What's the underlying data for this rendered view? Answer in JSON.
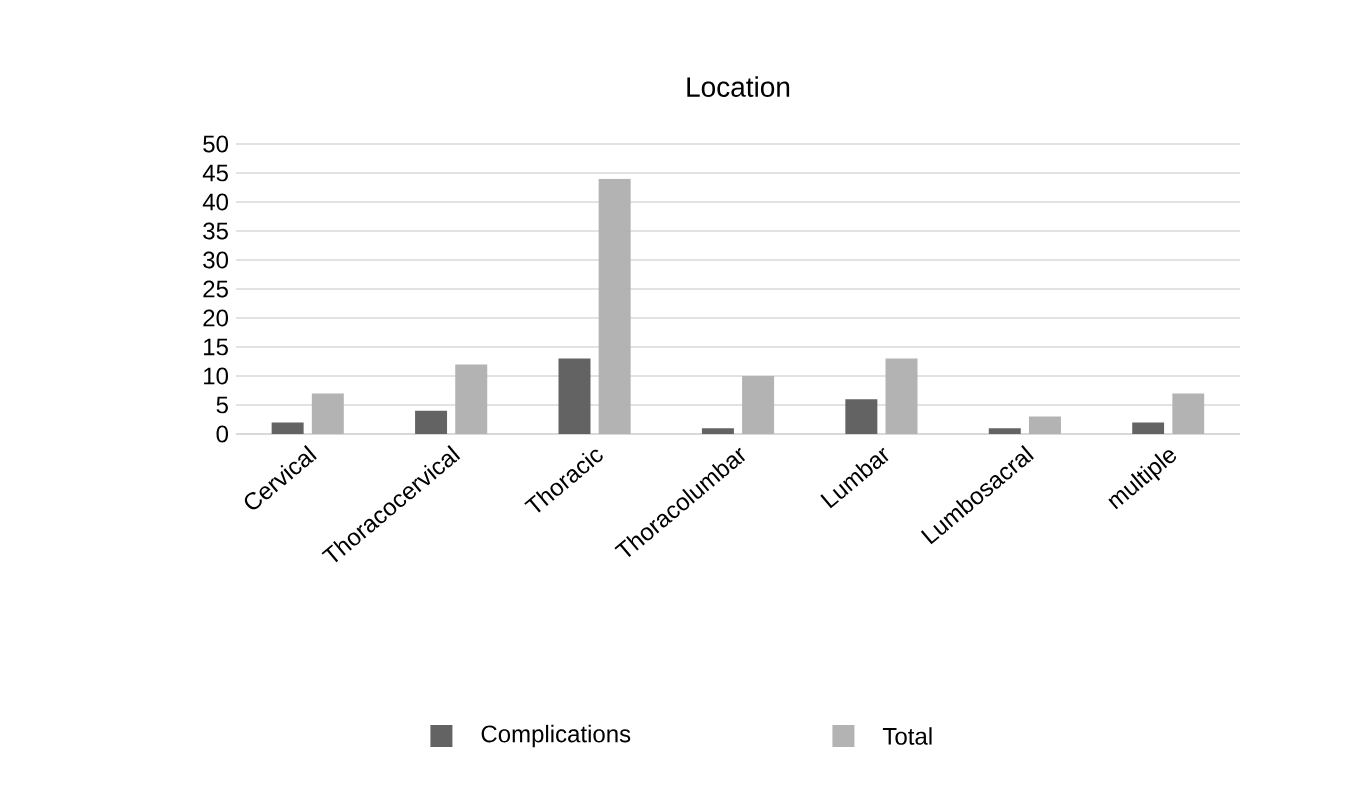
{
  "chart_data": {
    "type": "bar",
    "title": "Location",
    "categories": [
      "Cervical",
      "Thoracocervical",
      "Thoracic",
      "Thoracolumbar",
      "Lumbar",
      "Lumbosacral",
      "multiple"
    ],
    "series": [
      {
        "name": "Complications",
        "color": "#636363",
        "values": [
          2,
          4,
          13,
          1,
          6,
          1,
          2
        ]
      },
      {
        "name": "Total",
        "color": "#b3b3b3",
        "values": [
          7,
          12,
          44,
          10,
          13,
          3,
          7
        ]
      }
    ],
    "ylim": [
      0,
      50
    ],
    "yticks": [
      0,
      5,
      10,
      15,
      20,
      25,
      30,
      35,
      40,
      45,
      50
    ],
    "grid": "y",
    "legend": "bottom"
  }
}
